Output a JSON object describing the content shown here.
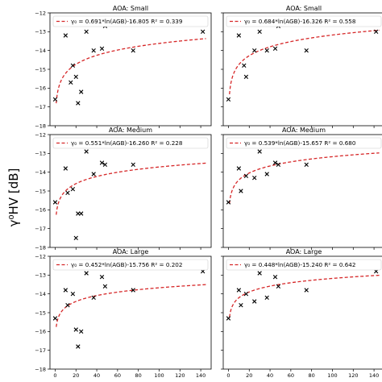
{
  "figure": {
    "ylabel": "γ⁰HV [dB]",
    "colors": {
      "fit_line": "#d62728",
      "marker": "#000000",
      "axes": "#000000",
      "legend_border": "#cccccc"
    }
  },
  "chart_data": [
    {
      "type": "scatter",
      "title": "AOA: Small",
      "legend": "γ₀ = 0.691*ln(AGB)-16.805   R² = 0.339",
      "fit": {
        "a": 0.691,
        "b": -16.805
      },
      "x": [
        0,
        10,
        15,
        17,
        20,
        22,
        25,
        30,
        37,
        45,
        48,
        75,
        142
      ],
      "y": [
        -16.6,
        -13.2,
        -15.7,
        -14.8,
        -15.4,
        -16.8,
        -16.2,
        -13.0,
        -14.0,
        -13.9,
        -12.7,
        -14.0,
        -13.0
      ],
      "xlim": [
        -5,
        150
      ],
      "ylim": [
        -18,
        -12
      ],
      "xticks": [
        0,
        20,
        40,
        60,
        80,
        100,
        120,
        140
      ],
      "yticks": [
        -18,
        -17,
        -16,
        -15,
        -14,
        -13,
        -12
      ],
      "show_x_ticklabels": false,
      "show_y_ticklabels": true
    },
    {
      "type": "scatter",
      "title": "AOA: Small",
      "legend": "γ₀ = 0.684*ln(AGB)-16.326   R² = 0.558",
      "fit": {
        "a": 0.684,
        "b": -16.326
      },
      "x": [
        0,
        10,
        15,
        17,
        25,
        30,
        37,
        45,
        48,
        75,
        142
      ],
      "y": [
        -16.6,
        -13.2,
        -14.8,
        -15.4,
        -14.0,
        -13.0,
        -14.0,
        -13.9,
        -12.7,
        -14.0,
        -13.0
      ],
      "xlim": [
        -5,
        150
      ],
      "ylim": [
        -18,
        -12
      ],
      "xticks": [
        0,
        20,
        40,
        60,
        80,
        100,
        120,
        140
      ],
      "yticks": [
        -18,
        -17,
        -16,
        -15,
        -14,
        -13,
        -12
      ],
      "show_x_ticklabels": false,
      "show_y_ticklabels": false
    },
    {
      "type": "scatter",
      "title": "AOA: Medium",
      "legend": "γ₀ = 0.551*ln(AGB)-16.260   R² = 0.228",
      "fit": {
        "a": 0.551,
        "b": -16.26
      },
      "x": [
        0,
        10,
        12,
        17,
        20,
        22,
        25,
        30,
        37,
        45,
        48,
        75,
        142
      ],
      "y": [
        -15.6,
        -13.8,
        -15.1,
        -14.9,
        -17.5,
        -16.2,
        -16.2,
        -12.9,
        -14.1,
        -13.5,
        -13.6,
        -13.6,
        -12.5
      ],
      "xlim": [
        -5,
        150
      ],
      "ylim": [
        -18,
        -12
      ],
      "xticks": [
        0,
        20,
        40,
        60,
        80,
        100,
        120,
        140
      ],
      "yticks": [
        -18,
        -17,
        -16,
        -15,
        -14,
        -13,
        -12
      ],
      "show_x_ticklabels": false,
      "show_y_ticklabels": true
    },
    {
      "type": "scatter",
      "title": "AOA: Medium",
      "legend": "γ₀ = 0.539*ln(AGB)-15.657   R² = 0.680",
      "fit": {
        "a": 0.539,
        "b": -15.657
      },
      "x": [
        0,
        10,
        12,
        17,
        25,
        30,
        37,
        45,
        48,
        75,
        142
      ],
      "y": [
        -15.6,
        -13.8,
        -15.0,
        -14.2,
        -14.3,
        -12.9,
        -14.1,
        -13.5,
        -13.6,
        -13.6,
        -12.5
      ],
      "xlim": [
        -5,
        150
      ],
      "ylim": [
        -18,
        -12
      ],
      "xticks": [
        0,
        20,
        40,
        60,
        80,
        100,
        120,
        140
      ],
      "yticks": [
        -18,
        -17,
        -16,
        -15,
        -14,
        -13,
        -12
      ],
      "show_x_ticklabels": false,
      "show_y_ticklabels": false
    },
    {
      "type": "scatter",
      "title": "AOA: Large",
      "legend": "γ₀ = 0.452*ln(AGB)-15.756   R² = 0.202",
      "fit": {
        "a": 0.452,
        "b": -15.756
      },
      "x": [
        0,
        10,
        12,
        17,
        20,
        22,
        25,
        30,
        37,
        45,
        48,
        75,
        142
      ],
      "y": [
        -15.3,
        -13.8,
        -14.6,
        -14.0,
        -15.9,
        -16.8,
        -16.0,
        -12.9,
        -14.2,
        -13.1,
        -13.6,
        -13.8,
        -12.8
      ],
      "xlim": [
        -5,
        150
      ],
      "ylim": [
        -18,
        -12
      ],
      "xticks": [
        0,
        20,
        40,
        60,
        80,
        100,
        120,
        140
      ],
      "yticks": [
        -18,
        -17,
        -16,
        -15,
        -14,
        -13,
        -12
      ],
      "show_x_ticklabels": true,
      "show_y_ticklabels": true
    },
    {
      "type": "scatter",
      "title": "AOA: Large",
      "legend": "γ₀ = 0.448*ln(AGB)-15.240   R² = 0.642",
      "fit": {
        "a": 0.448,
        "b": -15.24
      },
      "x": [
        0,
        10,
        12,
        17,
        25,
        30,
        37,
        45,
        48,
        75,
        142
      ],
      "y": [
        -15.3,
        -13.8,
        -14.6,
        -14.0,
        -14.4,
        -12.9,
        -14.2,
        -13.1,
        -13.6,
        -13.8,
        -12.8
      ],
      "xlim": [
        -5,
        150
      ],
      "ylim": [
        -18,
        -12
      ],
      "xticks": [
        0,
        20,
        40,
        60,
        80,
        100,
        120,
        140
      ],
      "yticks": [
        -18,
        -17,
        -16,
        -15,
        -14,
        -13,
        -12
      ],
      "show_x_ticklabels": true,
      "show_y_ticklabels": false
    }
  ]
}
